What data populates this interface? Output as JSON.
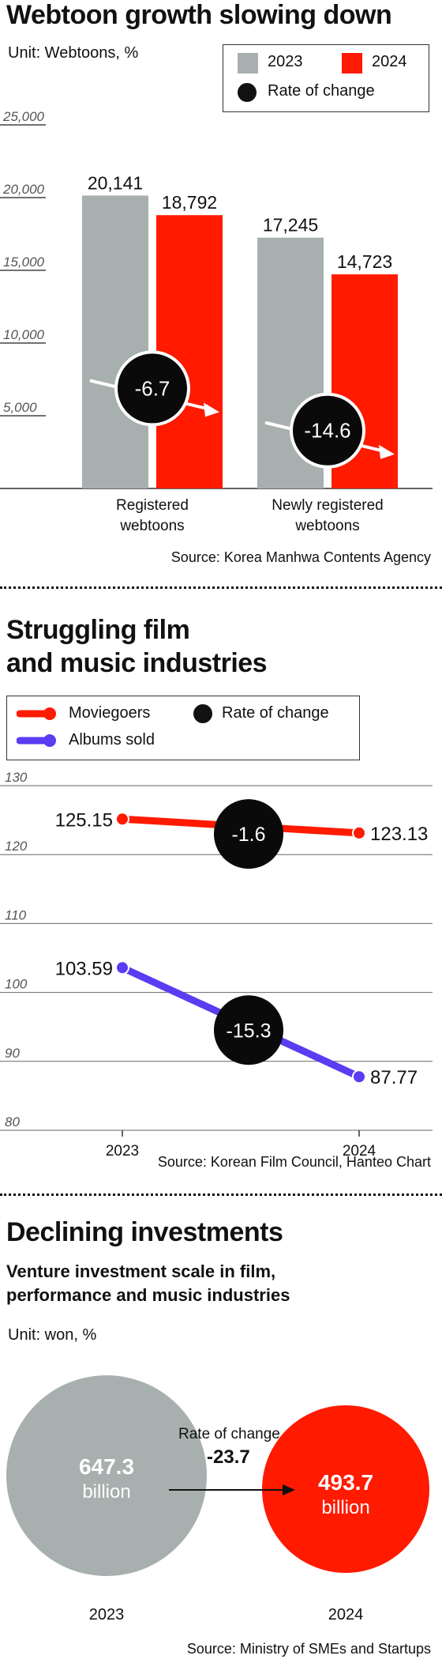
{
  "colors": {
    "gray": "#a7b0ae",
    "red": "#ff1a00",
    "blue": "#5a3cf2",
    "black": "#0a0a0a"
  },
  "section1": {
    "title": "Webtoon growth slowing down",
    "unit": "Unit: Webtoons, %",
    "legend": {
      "a": "2023",
      "b": "2024",
      "c": "Rate of change"
    },
    "category_labels": [
      [
        "Registered",
        "webtoons"
      ],
      [
        "Newly registered",
        "webtoons"
      ]
    ],
    "source": "Source: Korea Manhwa Contents Agency"
  },
  "section2": {
    "title_line1": "Struggling film",
    "title_line2": "and music industries",
    "legend": {
      "a": "Moviegoers",
      "b": "Rate of change",
      "c": "Albums sold"
    },
    "source": "Source: Korean Film Council, Hanteo Chart"
  },
  "section3": {
    "title": "Declining investments",
    "subtitle_line1": "Venture investment scale in film,",
    "subtitle_line2": "performance and music industries",
    "unit": "Unit: won, %",
    "rate_label": "Rate of change",
    "rate_value": "-23.7",
    "left": {
      "value": "647.3",
      "suffix": "billion",
      "year": "2023"
    },
    "right": {
      "value": "493.7",
      "suffix": "billion",
      "year": "2024"
    },
    "source": "Source: Ministry of SMEs and Startups"
  },
  "chart_data": [
    {
      "type": "bar",
      "title": "Webtoon growth slowing down",
      "categories": [
        "Registered webtoons",
        "Newly registered webtoons"
      ],
      "series": [
        {
          "name": "2023",
          "values": [
            20141,
            17245
          ],
          "labels": [
            "20,141",
            "17,245"
          ]
        },
        {
          "name": "2024",
          "values": [
            18792,
            14723
          ],
          "labels": [
            "18,792",
            "14,723"
          ]
        }
      ],
      "rate_of_change": [
        "-6.7",
        "-14.6"
      ],
      "ylim": [
        0,
        25000
      ],
      "yticks": [
        "25,000",
        "20,000",
        "15,000",
        "10,000",
        "5,000"
      ],
      "ytick_values": [
        25000,
        20000,
        15000,
        10000,
        5000
      ],
      "legend_position": "top-right",
      "grid": true
    },
    {
      "type": "line",
      "title": "Struggling film and music industries",
      "x": [
        "2023",
        "2024"
      ],
      "series": [
        {
          "name": "Moviegoers",
          "values": [
            125.15,
            123.13
          ],
          "labels": [
            "125.15",
            "123.13"
          ],
          "rate": "-1.6"
        },
        {
          "name": "Albums sold",
          "values": [
            103.59,
            87.77
          ],
          "labels": [
            "103.59",
            "87.77"
          ],
          "rate": "-15.3"
        }
      ],
      "yticks": [
        "130",
        "120",
        "110",
        "100",
        "90",
        "80"
      ],
      "ytick_values": [
        130,
        120,
        110,
        100,
        90,
        80
      ],
      "ylim": [
        80,
        130
      ],
      "legend_position": "top-left",
      "grid": true
    }
  ]
}
